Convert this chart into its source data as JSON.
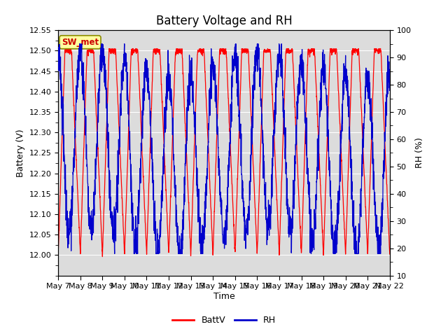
{
  "title": "Battery Voltage and RH",
  "xlabel": "Time",
  "ylabel_left": "Battery (V)",
  "ylabel_right": "RH (%)",
  "ylim_left": [
    11.95,
    12.55
  ],
  "ylim_right": [
    10,
    100
  ],
  "yticks_left": [
    12.0,
    12.05,
    12.1,
    12.15,
    12.2,
    12.25,
    12.3,
    12.35,
    12.4,
    12.45,
    12.5,
    12.55
  ],
  "yticks_right": [
    10,
    20,
    30,
    40,
    50,
    60,
    70,
    80,
    90,
    100
  ],
  "date_labels": [
    "May 7",
    "May 8",
    "May 9",
    "May 10",
    "May 11",
    "May 12",
    "May 13",
    "May 14",
    "May 15",
    "May 16",
    "May 17",
    "May 18",
    "May 19",
    "May 20",
    "May 21",
    "May 22"
  ],
  "station_label": "SW_met",
  "station_box_facecolor": "#FFFFA0",
  "station_box_edgecolor": "#8B8B00",
  "batt_color": "#FF0000",
  "rh_color": "#0000CC",
  "legend_batt": "BattV",
  "legend_rh": "RH",
  "plot_bg_color": "#DCDCDC",
  "fig_bg_color": "#FFFFFF",
  "title_fontsize": 12,
  "axis_fontsize": 9,
  "tick_fontsize": 8,
  "n_days": 15,
  "points_per_day": 144
}
